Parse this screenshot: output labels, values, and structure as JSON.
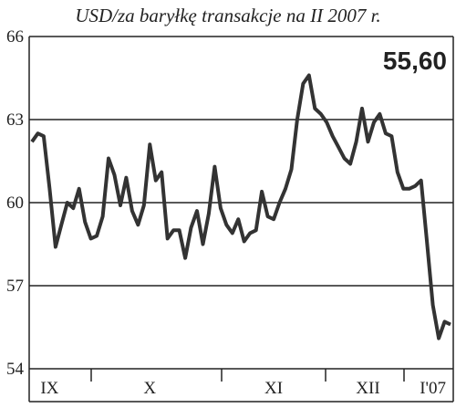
{
  "chart_data": {
    "type": "line",
    "title": "USD/za baryłkę   transakcje na II 2007 r.",
    "categories": [
      null,
      null,
      null,
      "IX",
      null,
      null,
      null,
      null,
      null,
      null,
      null,
      null,
      null,
      null,
      null,
      null,
      null,
      null,
      null,
      null,
      "X",
      null,
      null,
      null,
      null,
      null,
      null,
      null,
      null,
      null,
      null,
      null,
      null,
      null,
      null,
      null,
      null,
      null,
      null,
      null,
      null,
      "XI",
      null,
      null,
      null,
      null,
      null,
      null,
      null,
      null,
      null,
      null,
      null,
      null,
      null,
      null,
      null,
      "XII",
      null,
      null,
      null,
      null,
      null,
      null,
      null,
      null,
      null,
      null,
      "I'07",
      null,
      null,
      null
    ],
    "values": [
      62.2,
      62.5,
      62.4,
      60.5,
      58.4,
      59.2,
      60.0,
      59.8,
      60.5,
      59.3,
      58.7,
      58.8,
      59.5,
      61.6,
      61.0,
      59.9,
      60.9,
      59.7,
      59.2,
      59.9,
      62.1,
      60.8,
      61.1,
      58.7,
      59.0,
      59.0,
      58.0,
      59.1,
      59.7,
      58.5,
      59.6,
      61.3,
      59.8,
      59.2,
      58.9,
      59.4,
      58.6,
      58.9,
      59.0,
      60.4,
      59.5,
      59.4,
      60.0,
      60.5,
      61.2,
      63.0,
      64.3,
      64.6,
      63.4,
      63.2,
      62.9,
      62.4,
      62.0,
      61.6,
      61.4,
      62.2,
      63.4,
      62.2,
      62.9,
      63.2,
      62.5,
      62.4,
      61.1,
      60.5,
      60.5,
      60.6,
      60.8,
      58.6,
      56.3,
      55.1,
      55.7,
      55.6
    ],
    "value_labels": [
      null,
      null,
      null,
      null,
      null,
      null,
      null,
      null,
      null,
      null,
      null,
      null,
      null,
      null,
      null,
      null,
      null,
      null,
      null,
      null,
      null,
      null,
      null,
      null,
      null,
      null,
      null,
      null,
      null,
      null,
      null,
      null,
      null,
      null,
      null,
      null,
      null,
      null,
      null,
      null,
      null,
      null,
      null,
      null,
      null,
      null,
      null,
      null,
      null,
      null,
      null,
      null,
      null,
      null,
      null,
      null,
      null,
      null,
      null,
      null,
      null,
      null,
      null,
      null,
      null,
      null,
      null,
      null,
      null,
      null,
      null,
      "55,60"
    ],
    "color": "#333333",
    "ylim": [
      54,
      66
    ],
    "yticks": [
      54,
      57,
      60,
      63,
      66
    ],
    "grid": true
  }
}
